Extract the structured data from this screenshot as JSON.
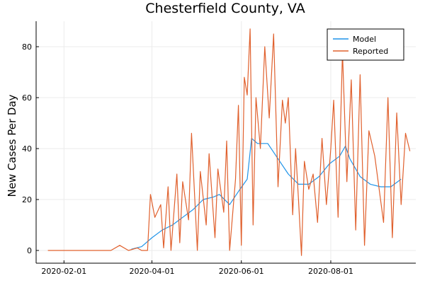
{
  "chart_data": {
    "type": "line",
    "title": "Chesterfield County, VA",
    "xlabel": "",
    "ylabel": "New Cases Per Day",
    "x_type": "date",
    "xlim": [
      "2020-01-13",
      "2020-09-28"
    ],
    "ylim": [
      -5,
      90
    ],
    "x_ticks": [
      "2020-02-01",
      "2020-04-01",
      "2020-06-01",
      "2020-08-01"
    ],
    "y_ticks": [
      0,
      20,
      40,
      60,
      80
    ],
    "grid": true,
    "legend_position": "top-right",
    "series": [
      {
        "name": "Model",
        "color": "#1f93e8",
        "x": [
          "2020-03-18",
          "2020-03-25",
          "2020-04-01",
          "2020-04-08",
          "2020-04-15",
          "2020-04-22",
          "2020-04-29",
          "2020-05-06",
          "2020-05-13",
          "2020-05-17",
          "2020-05-24",
          "2020-05-31",
          "2020-06-05",
          "2020-06-08",
          "2020-06-12",
          "2020-06-19",
          "2020-06-26",
          "2020-07-03",
          "2020-07-10",
          "2020-07-17",
          "2020-07-24",
          "2020-07-31",
          "2020-08-07",
          "2020-08-11",
          "2020-08-14",
          "2020-08-21",
          "2020-08-28",
          "2020-09-04",
          "2020-09-11",
          "2020-09-18"
        ],
        "values": [
          0.5,
          1.5,
          5,
          8,
          10,
          13,
          16,
          20,
          21,
          22,
          18,
          24,
          28,
          44,
          42,
          42,
          36,
          30,
          26,
          26,
          29,
          34,
          37,
          41,
          36,
          29,
          26,
          25,
          25,
          28
        ]
      },
      {
        "name": "Reported",
        "color": "#e0602d",
        "x": [
          "2020-01-21",
          "2020-02-10",
          "2020-03-04",
          "2020-03-10",
          "2020-03-16",
          "2020-03-22",
          "2020-03-25",
          "2020-03-29",
          "2020-03-31",
          "2020-04-03",
          "2020-04-07",
          "2020-04-09",
          "2020-04-12",
          "2020-04-14",
          "2020-04-18",
          "2020-04-20",
          "2020-04-22",
          "2020-04-26",
          "2020-04-28",
          "2020-05-02",
          "2020-05-04",
          "2020-05-08",
          "2020-05-10",
          "2020-05-14",
          "2020-05-16",
          "2020-05-20",
          "2020-05-22",
          "2020-05-24",
          "2020-05-28",
          "2020-05-30",
          "2020-06-01",
          "2020-06-03",
          "2020-06-05",
          "2020-06-07",
          "2020-06-09",
          "2020-06-11",
          "2020-06-14",
          "2020-06-17",
          "2020-06-20",
          "2020-06-23",
          "2020-06-26",
          "2020-06-29",
          "2020-07-01",
          "2020-07-03",
          "2020-07-06",
          "2020-07-08",
          "2020-07-10",
          "2020-07-12",
          "2020-07-14",
          "2020-07-17",
          "2020-07-20",
          "2020-07-23",
          "2020-07-26",
          "2020-07-29",
          "2020-08-01",
          "2020-08-03",
          "2020-08-06",
          "2020-08-09",
          "2020-08-12",
          "2020-08-15",
          "2020-08-18",
          "2020-08-21",
          "2020-08-24",
          "2020-08-27",
          "2020-08-31",
          "2020-09-03",
          "2020-09-06",
          "2020-09-09",
          "2020-09-12",
          "2020-09-15",
          "2020-09-18",
          "2020-09-21",
          "2020-09-24"
        ],
        "values": [
          0,
          0,
          0,
          2,
          0,
          1,
          0,
          0,
          22,
          13,
          18,
          1,
          25,
          0,
          30,
          3,
          27,
          12,
          46,
          0,
          31,
          10,
          38,
          5,
          32,
          15,
          43,
          0,
          28,
          57,
          2,
          68,
          61,
          87,
          10,
          60,
          40,
          80,
          52,
          85,
          25,
          59,
          50,
          60,
          14,
          40,
          20,
          -2,
          35,
          24,
          30,
          11,
          44,
          18,
          40,
          59,
          13,
          78,
          27,
          67,
          8,
          69,
          2,
          47,
          37,
          24,
          11,
          60,
          5,
          54,
          18,
          46,
          39
        ]
      }
    ]
  }
}
